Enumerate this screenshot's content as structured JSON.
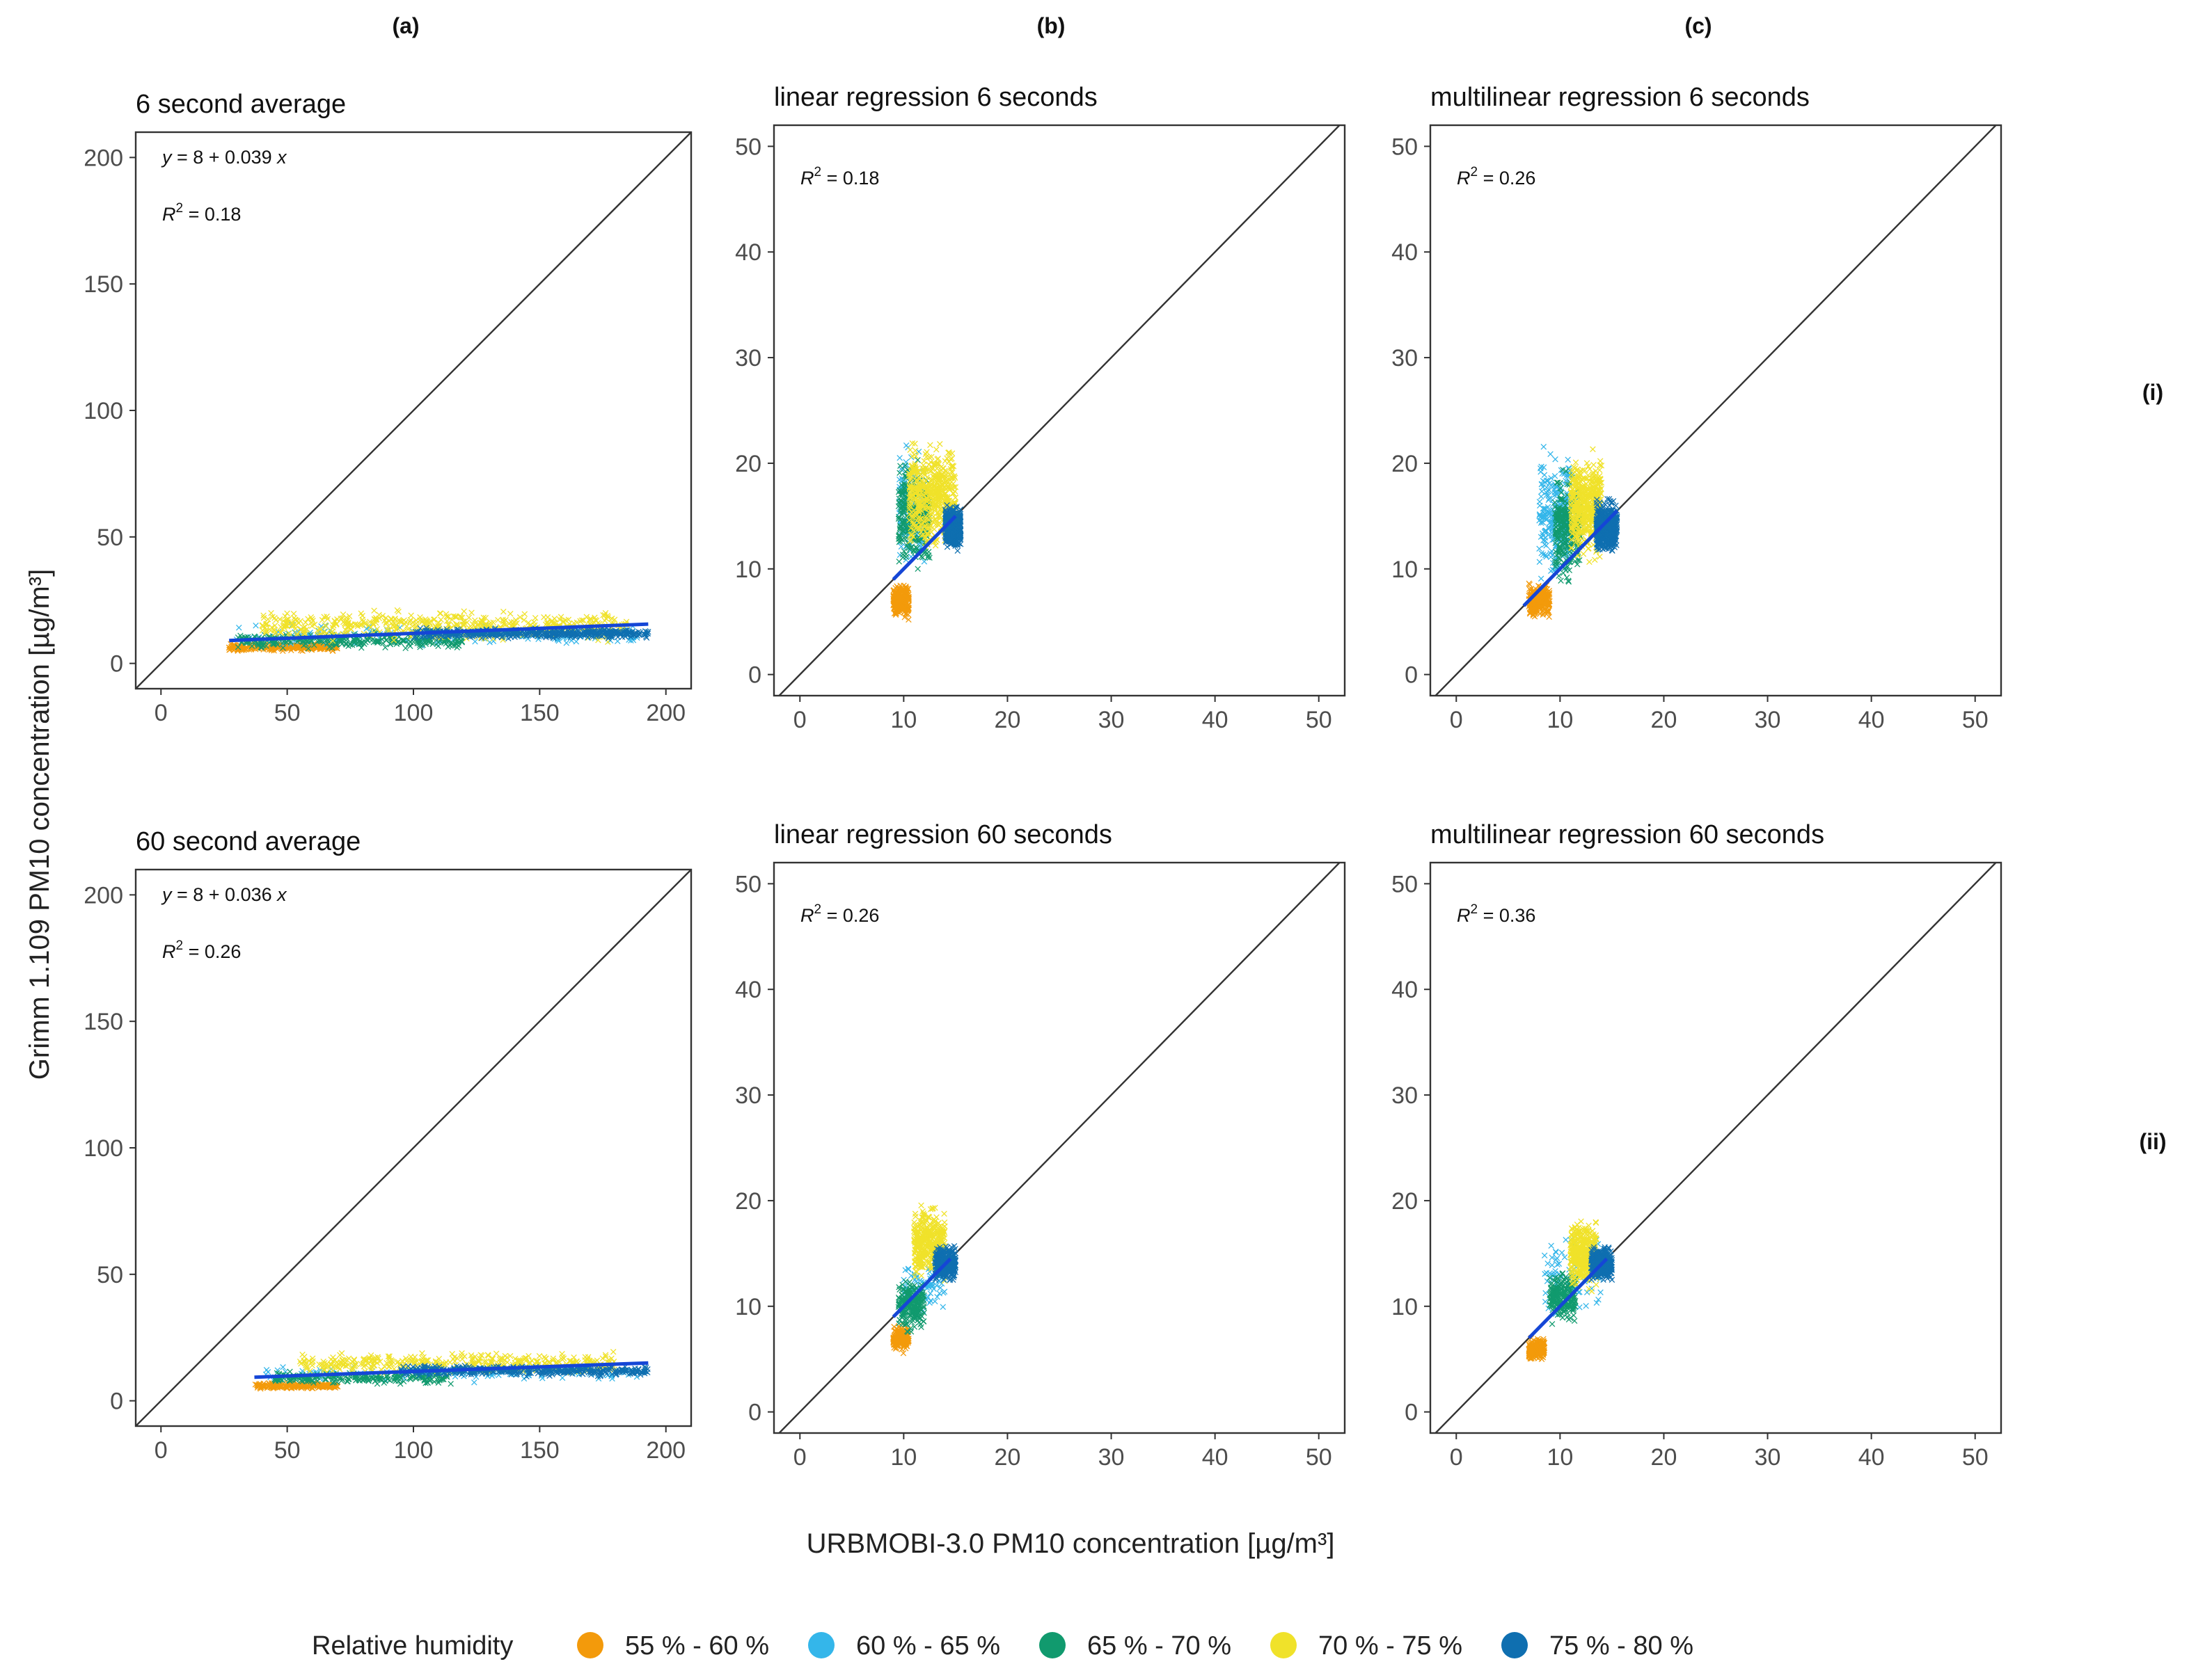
{
  "figure": {
    "columns": [
      "(a)",
      "(b)",
      "(c)"
    ],
    "rows": [
      "(i)",
      "(ii)"
    ],
    "ylabel": "Grimm 1.109 PM10 concentration [µg/m³]",
    "xlabel": "URBMOBI-3.0 PM10 concentration [µg/m³]",
    "legend": {
      "title": "Relative humidity",
      "items": [
        {
          "label": "55 % - 60 %",
          "color": "#F39A0B"
        },
        {
          "label": "60 % - 65 %",
          "color": "#34B6EA"
        },
        {
          "label": "65 % - 70 %",
          "color": "#119A6E"
        },
        {
          "label": "70 % - 75 %",
          "color": "#F0E22A"
        },
        {
          "label": "75 % - 80 %",
          "color": "#0F6FB0"
        }
      ]
    },
    "identity_line_color": "#333333",
    "fit_line_color": "#1546D6"
  },
  "chart_data": [
    {
      "type": "scatter",
      "panel": "a-i",
      "title": "6 second average",
      "xlim": [
        -10,
        210
      ],
      "ylim": [
        -10,
        210
      ],
      "xticks": [
        0,
        50,
        100,
        150,
        200
      ],
      "yticks": [
        0,
        50,
        100,
        150,
        200
      ],
      "equation_prefix": "y",
      "equation_body": " = 8 + 0.039 ",
      "equation_suffix": "x",
      "r2_prefix": "R",
      "r2_sup": "2",
      "r2_value": " = 0.18",
      "fit": {
        "intercept": 8,
        "slope": 0.039,
        "x_range": [
          27,
          193
        ]
      },
      "clusters": [
        {
          "series": "55 % - 60 %",
          "x_range": [
            27,
            70
          ],
          "y_center": 6.5,
          "y_spread": 1.8,
          "count": 260
        },
        {
          "series": "60 % - 65 %",
          "x_range": [
            30,
            190
          ],
          "y_center": 11,
          "y_spread": 5,
          "count": 160
        },
        {
          "series": "65 % - 70 %",
          "x_range": [
            30,
            120
          ],
          "y_center": 9,
          "y_spread": 4,
          "count": 300
        },
        {
          "series": "70 % - 75 %",
          "x_range": [
            40,
            185
          ],
          "y_center": 15,
          "y_spread": 7,
          "count": 520
        },
        {
          "series": "75 % - 80 %",
          "x_range": [
            100,
            193
          ],
          "y_center": 12,
          "y_spread": 2.5,
          "count": 460
        }
      ]
    },
    {
      "type": "scatter",
      "panel": "b-i",
      "title": "linear regression 6 seconds",
      "xlim": [
        -2.5,
        52.5
      ],
      "ylim": [
        -2,
        52
      ],
      "xticks": [
        0,
        10,
        20,
        30,
        40,
        50
      ],
      "yticks": [
        0,
        10,
        20,
        30,
        40,
        50
      ],
      "r2_prefix": "R",
      "r2_sup": "2",
      "r2_value": " = 0.18",
      "fit": {
        "intercept": 0,
        "slope": 1,
        "x_range": [
          9,
          15
        ]
      },
      "clusters": [
        {
          "series": "55 % - 60 %",
          "x_range": [
            9,
            10.5
          ],
          "y_center": 7,
          "y_spread": 2,
          "count": 260
        },
        {
          "series": "60 % - 65 %",
          "x_range": [
            9.5,
            12
          ],
          "y_center": 16,
          "y_spread": 7,
          "count": 160
        },
        {
          "series": "65 % - 70 %",
          "x_range": [
            9.5,
            12.5
          ],
          "y_center": 15,
          "y_spread": 6,
          "count": 300
        },
        {
          "series": "70 % - 75 %",
          "x_range": [
            10.5,
            15
          ],
          "y_center": 17,
          "y_spread": 6,
          "count": 520
        },
        {
          "series": "75 % - 80 %",
          "x_range": [
            14,
            15.5
          ],
          "y_center": 14,
          "y_spread": 2.5,
          "count": 460
        }
      ]
    },
    {
      "type": "scatter",
      "panel": "c-i",
      "title": "multilinear regression 6 seconds",
      "xlim": [
        -2.5,
        52.5
      ],
      "ylim": [
        -2,
        52
      ],
      "xticks": [
        0,
        10,
        20,
        30,
        40,
        50
      ],
      "yticks": [
        0,
        10,
        20,
        30,
        40,
        50
      ],
      "r2_prefix": "R",
      "r2_sup": "2",
      "r2_value": " = 0.26",
      "fit": {
        "intercept": 0,
        "slope": 1,
        "x_range": [
          6.5,
          15.5
        ]
      },
      "clusters": [
        {
          "series": "55 % - 60 %",
          "x_range": [
            7,
            9
          ],
          "y_center": 7,
          "y_spread": 2,
          "count": 260
        },
        {
          "series": "60 % - 65 %",
          "x_range": [
            8,
            11
          ],
          "y_center": 15,
          "y_spread": 7,
          "count": 260
        },
        {
          "series": "65 % - 70 %",
          "x_range": [
            9.5,
            12
          ],
          "y_center": 14,
          "y_spread": 6,
          "count": 300
        },
        {
          "series": "70 % - 75 %",
          "x_range": [
            11,
            14
          ],
          "y_center": 16,
          "y_spread": 6,
          "count": 460
        },
        {
          "series": "75 % - 80 %",
          "x_range": [
            13.5,
            15.5
          ],
          "y_center": 14,
          "y_spread": 3,
          "count": 460
        }
      ]
    },
    {
      "type": "scatter",
      "panel": "a-ii",
      "title": "60 second average",
      "xlim": [
        -10,
        210
      ],
      "ylim": [
        -10,
        210
      ],
      "xticks": [
        0,
        50,
        100,
        150,
        200
      ],
      "yticks": [
        0,
        50,
        100,
        150,
        200
      ],
      "equation_prefix": "y",
      "equation_body": " = 8 + 0.036 ",
      "equation_suffix": "x",
      "r2_prefix": "R",
      "r2_sup": "2",
      "r2_value": " = 0.26",
      "fit": {
        "intercept": 8,
        "slope": 0.036,
        "x_range": [
          37,
          193
        ]
      },
      "clusters": [
        {
          "series": "55 % - 60 %",
          "x_range": [
            37,
            70
          ],
          "y_center": 6,
          "y_spread": 1.5,
          "count": 200
        },
        {
          "series": "60 % - 65 %",
          "x_range": [
            40,
            190
          ],
          "y_center": 11,
          "y_spread": 4,
          "count": 120
        },
        {
          "series": "65 % - 70 %",
          "x_range": [
            45,
            115
          ],
          "y_center": 9,
          "y_spread": 3,
          "count": 220
        },
        {
          "series": "70 % - 75 %",
          "x_range": [
            55,
            180
          ],
          "y_center": 15,
          "y_spread": 5,
          "count": 380
        },
        {
          "series": "75 % - 80 %",
          "x_range": [
            95,
            193
          ],
          "y_center": 12,
          "y_spread": 2.5,
          "count": 380
        }
      ]
    },
    {
      "type": "scatter",
      "panel": "b-ii",
      "title": "linear regression 60 seconds",
      "xlim": [
        -2.5,
        52.5
      ],
      "ylim": [
        -2,
        52
      ],
      "xticks": [
        0,
        10,
        20,
        30,
        40,
        50
      ],
      "yticks": [
        0,
        10,
        20,
        30,
        40,
        50
      ],
      "r2_prefix": "R",
      "r2_sup": "2",
      "r2_value": " = 0.26",
      "fit": {
        "intercept": 0,
        "slope": 1,
        "x_range": [
          9,
          14.5
        ]
      },
      "clusters": [
        {
          "series": "55 % - 60 %",
          "x_range": [
            9,
            10.5
          ],
          "y_center": 7,
          "y_spread": 1.5,
          "count": 200
        },
        {
          "series": "60 % - 65 %",
          "x_range": [
            10,
            14
          ],
          "y_center": 12,
          "y_spread": 3,
          "count": 80
        },
        {
          "series": "65 % - 70 %",
          "x_range": [
            9.5,
            12
          ],
          "y_center": 10,
          "y_spread": 3,
          "count": 220
        },
        {
          "series": "70 % - 75 %",
          "x_range": [
            11,
            14
          ],
          "y_center": 16,
          "y_spread": 4,
          "count": 380
        },
        {
          "series": "75 % - 80 %",
          "x_range": [
            13,
            15
          ],
          "y_center": 14,
          "y_spread": 2,
          "count": 380
        }
      ]
    },
    {
      "type": "scatter",
      "panel": "c-ii",
      "title": "multilinear regression 60 seconds",
      "xlim": [
        -2.5,
        52.5
      ],
      "ylim": [
        -2,
        52
      ],
      "xticks": [
        0,
        10,
        20,
        30,
        40,
        50
      ],
      "yticks": [
        0,
        10,
        20,
        30,
        40,
        50
      ],
      "r2_prefix": "R",
      "r2_sup": "2",
      "r2_value": " = 0.36",
      "fit": {
        "intercept": 0,
        "slope": 1,
        "x_range": [
          7,
          14.5
        ]
      },
      "clusters": [
        {
          "series": "55 % - 60 %",
          "x_range": [
            7,
            8.5
          ],
          "y_center": 6,
          "y_spread": 1.2,
          "count": 200
        },
        {
          "series": "60 % - 65 %",
          "x_range": [
            8.5,
            14
          ],
          "y_center": 13,
          "y_spread": 4,
          "count": 80
        },
        {
          "series": "65 % - 70 %",
          "x_range": [
            9,
            11.5
          ],
          "y_center": 11,
          "y_spread": 3,
          "count": 220
        },
        {
          "series": "70 % - 75 %",
          "x_range": [
            11,
            13.5
          ],
          "y_center": 15,
          "y_spread": 4,
          "count": 380
        },
        {
          "series": "75 % - 80 %",
          "x_range": [
            13,
            15
          ],
          "y_center": 14,
          "y_spread": 2,
          "count": 380
        }
      ]
    }
  ]
}
